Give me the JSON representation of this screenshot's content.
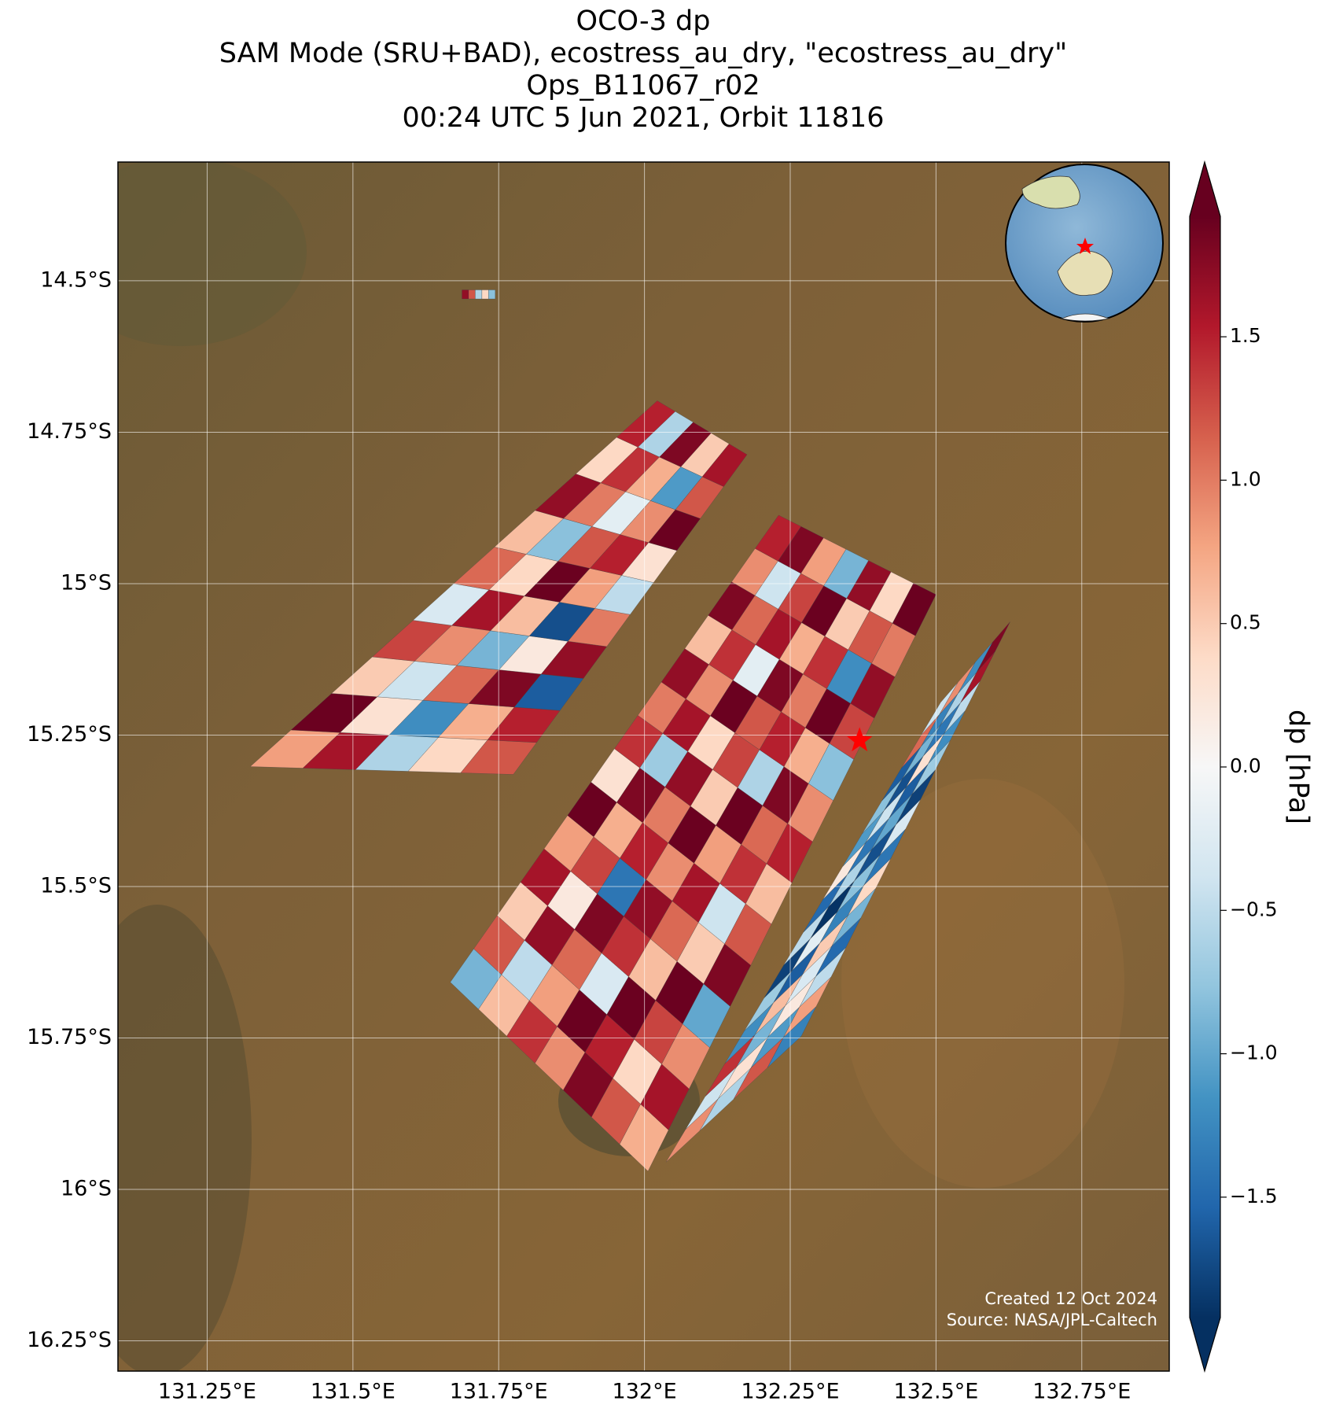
{
  "chart_data": {
    "type": "map",
    "title": [
      "OCO-3 dp",
      "SAM Mode (SRU+BAD), ecostress_au_dry, \"ecostress_au_dry\"",
      "Ops_B11067_r02",
      "00:24 UTC 5 Jun 2021, Orbit 11816"
    ],
    "xlim": [
      131.097,
      132.9
    ],
    "ylim": [
      -16.3,
      -14.304
    ],
    "xticks": [
      {
        "value": 131.25,
        "label": "131.25°E"
      },
      {
        "value": 131.5,
        "label": "131.5°E"
      },
      {
        "value": 131.75,
        "label": "131.75°E"
      },
      {
        "value": 132,
        "label": "132°E"
      },
      {
        "value": 132.25,
        "label": "132.25°E"
      },
      {
        "value": 132.5,
        "label": "132.5°E"
      },
      {
        "value": 132.75,
        "label": "132.75°E"
      }
    ],
    "yticks": [
      {
        "value": -14.5,
        "label": "14.5°S"
      },
      {
        "value": -14.75,
        "label": "14.75°S"
      },
      {
        "value": -15,
        "label": "15°S"
      },
      {
        "value": -15.25,
        "label": "15.25°S"
      },
      {
        "value": -15.5,
        "label": "15.5°S"
      },
      {
        "value": -15.75,
        "label": "15.75°S"
      },
      {
        "value": -16,
        "label": "16°S"
      },
      {
        "value": -16.25,
        "label": "16.25°S"
      }
    ],
    "grid": true,
    "colorbar": {
      "label": "dp [hPa]",
      "clim": [
        -1.92,
        1.92
      ],
      "ticks": [
        1.5,
        {
          "value": 1.0,
          "label": "1.0"
        },
        0.5,
        {
          "value": 0.0,
          "label": "0.0"
        },
        {
          "value": -0.5,
          "label": "−0.5"
        },
        {
          "value": -1.0,
          "label": "−1.0"
        },
        {
          "value": -1.5,
          "label": "−1.5"
        }
      ],
      "colors": [
        "#053061",
        "#2166ac",
        "#4393c3",
        "#92c5de",
        "#d1e5f0",
        "#f7f7f7",
        "#fddbc7",
        "#f4a582",
        "#d6604d",
        "#b2182b",
        "#67001f"
      ]
    },
    "swaths": [
      {
        "corners": [
          [
            131.324,
            -15.302
          ],
          [
            131.775,
            -15.315
          ],
          [
            132.022,
            -14.698
          ],
          [
            132.176,
            -14.787
          ]
        ],
        "values": [
          [
            0.8,
            1.6,
            -0.6,
            0.4,
            1.2
          ],
          [
            1.9,
            0.3,
            -1.2,
            0.7,
            1.5
          ],
          [
            0.5,
            -0.4,
            1.1,
            1.8,
            -1.6
          ],
          [
            1.3,
            0.9,
            -0.9,
            0.2,
            1.7
          ],
          [
            -0.3,
            1.6,
            0.6,
            -1.7,
            1.0
          ],
          [
            1.1,
            0.4,
            1.9,
            0.8,
            -0.5
          ],
          [
            0.6,
            -0.8,
            1.2,
            1.5,
            0.3
          ],
          [
            1.7,
            1.0,
            -0.2,
            0.9,
            1.9
          ],
          [
            0.4,
            1.4,
            0.7,
            -1.1,
            1.2
          ],
          [
            1.5,
            -0.6,
            1.8,
            0.5,
            1.6
          ]
        ]
      },
      {
        "corners": [
          [
            131.667,
            -15.658
          ],
          [
            132.006,
            -15.97
          ],
          [
            132.23,
            -14.887
          ],
          [
            132.5,
            -15.018
          ]
        ],
        "values": [
          [
            -0.9,
            0.6,
            1.4,
            0.9,
            1.8,
            1.2,
            0.7
          ],
          [
            1.2,
            -0.5,
            0.8,
            1.9,
            1.5,
            0.4,
            1.6
          ],
          [
            0.5,
            1.7,
            1.1,
            -0.3,
            1.9,
            1.3,
            0.9
          ],
          [
            1.6,
            0.2,
            1.8,
            1.4,
            0.6,
            1.9,
            -1.0
          ],
          [
            0.8,
            1.3,
            -1.4,
            1.7,
            1.1,
            0.5,
            1.8
          ],
          [
            1.9,
            0.7,
            1.5,
            0.9,
            1.6,
            -0.4,
            1.2
          ],
          [
            0.3,
            1.8,
            1.0,
            1.9,
            0.8,
            1.4,
            0.6
          ],
          [
            1.4,
            -0.7,
            1.7,
            0.5,
            1.9,
            1.1,
            1.5
          ],
          [
            1.0,
            1.6,
            0.4,
            1.3,
            -0.6,
            1.8,
            0.9
          ],
          [
            1.7,
            0.9,
            1.9,
            1.2,
            1.5,
            0.7,
            -0.8
          ],
          [
            0.6,
            1.4,
            -0.2,
            1.8,
            1.0,
            1.9,
            1.3
          ],
          [
            1.8,
            1.1,
            1.6,
            0.7,
            1.4,
            -1.2,
            1.7
          ],
          [
            0.9,
            -0.4,
            1.3,
            1.9,
            0.5,
            1.2,
            1.0
          ],
          [
            1.5,
            1.8,
            0.8,
            -0.9,
            1.7,
            0.4,
            1.9
          ]
        ]
      },
      {
        "corners": [
          [
            132.037,
            -15.955
          ],
          [
            132.269,
            -15.747
          ],
          [
            132.508,
            -15.196
          ],
          [
            132.627,
            -15.063
          ]
        ],
        "values": [
          [
            0.9,
            -0.6,
            1.2,
            -1.3
          ],
          [
            -0.4,
            0.3,
            -1.1,
            0.8
          ],
          [
            1.4,
            -0.9,
            0.2,
            -0.5
          ],
          [
            -1.2,
            0.6,
            -0.3,
            -1.5
          ],
          [
            -0.7,
            -1.6,
            0.5,
            -0.9
          ],
          [
            -1.8,
            -0.2,
            -1.3,
            0.4
          ],
          [
            -0.5,
            -1.9,
            -0.8,
            -1.4
          ],
          [
            -1.5,
            -0.6,
            -1.7,
            -0.3
          ],
          [
            0.2,
            -1.4,
            -1.0,
            -1.8
          ],
          [
            -1.1,
            -0.4,
            -1.6,
            -0.7
          ],
          [
            -0.8,
            -1.7,
            0.3,
            -1.2
          ],
          [
            -1.6,
            -0.9,
            -1.4,
            -0.5
          ],
          [
            1.1,
            -1.3,
            -0.6,
            1.6
          ],
          [
            -0.4,
            0.9,
            -1.2,
            1.8
          ]
        ]
      },
      {
        "corners": [
          [
            131.687,
            -14.53
          ],
          [
            131.744,
            -14.53
          ],
          [
            131.687,
            -14.515
          ],
          [
            131.744,
            -14.515
          ]
        ],
        "values": [
          [
            1.7,
            1.2,
            -0.6,
            0.4,
            -0.8
          ]
        ]
      }
    ],
    "target": {
      "lon": 132.369,
      "lat": -15.259
    },
    "annotations": [
      "Created 12 Oct 2024",
      "Source: NASA/JPL-Caltech"
    ]
  }
}
